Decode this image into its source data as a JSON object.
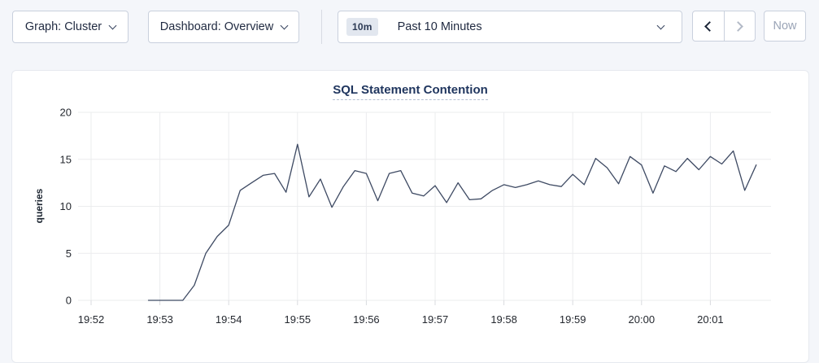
{
  "toolbar": {
    "graph_dropdown": {
      "label": "Graph: Cluster"
    },
    "dashboard_dropdown": {
      "label": "Dashboard: Overview"
    },
    "time_selector": {
      "badge": "10m",
      "label": "Past 10 Minutes"
    },
    "now_label": "Now",
    "icons": [
      "chevron-down-icon",
      "chevron-left-icon",
      "chevron-right-icon"
    ],
    "prev_enabled": true,
    "next_enabled": false,
    "now_enabled": false
  },
  "colors": {
    "page_background": "#f4f6fa",
    "card_background": "#ffffff",
    "line": "#3e4a63",
    "title": "#1f355e",
    "grid": "#ebecee",
    "disabled_text": "#9aa4b6"
  },
  "chart_data": {
    "type": "line",
    "title": "SQL Statement Contention",
    "ylabel": "queries",
    "xlabel": "",
    "ylim": [
      0,
      20
    ],
    "y_ticks": [
      0,
      5,
      10,
      15,
      20
    ],
    "x_ticks": [
      "19:52",
      "19:53",
      "19:54",
      "19:55",
      "19:56",
      "19:57",
      "19:58",
      "19:59",
      "20:00",
      "20:01"
    ],
    "grid": true,
    "legend_position": "none",
    "series": [
      {
        "name": "SQL Statement Contention",
        "points": [
          [
            "19:52:50",
            0
          ],
          [
            "19:53:00",
            0
          ],
          [
            "19:53:10",
            0
          ],
          [
            "19:53:20",
            0
          ],
          [
            "19:53:30",
            1.6
          ],
          [
            "19:53:40",
            5.0
          ],
          [
            "19:53:50",
            6.8
          ],
          [
            "19:54:00",
            8.0
          ],
          [
            "19:54:10",
            11.7
          ],
          [
            "19:54:20",
            12.5
          ],
          [
            "19:54:30",
            13.3
          ],
          [
            "19:54:40",
            13.5
          ],
          [
            "19:54:50",
            11.5
          ],
          [
            "19:55:00",
            16.6
          ],
          [
            "19:55:10",
            11.0
          ],
          [
            "19:55:20",
            12.9
          ],
          [
            "19:55:30",
            9.9
          ],
          [
            "19:55:40",
            12.1
          ],
          [
            "19:55:50",
            13.8
          ],
          [
            "19:56:00",
            13.5
          ],
          [
            "19:56:10",
            10.6
          ],
          [
            "19:56:20",
            13.5
          ],
          [
            "19:56:30",
            13.8
          ],
          [
            "19:56:40",
            11.4
          ],
          [
            "19:56:50",
            11.1
          ],
          [
            "19:57:00",
            12.2
          ],
          [
            "19:57:10",
            10.4
          ],
          [
            "19:57:20",
            12.5
          ],
          [
            "19:57:30",
            10.7
          ],
          [
            "19:57:40",
            10.8
          ],
          [
            "19:57:50",
            11.7
          ],
          [
            "19:58:00",
            12.3
          ],
          [
            "19:58:10",
            12.0
          ],
          [
            "19:58:20",
            12.3
          ],
          [
            "19:58:30",
            12.7
          ],
          [
            "19:58:40",
            12.3
          ],
          [
            "19:58:50",
            12.1
          ],
          [
            "19:59:00",
            13.4
          ],
          [
            "19:59:10",
            12.3
          ],
          [
            "19:59:20",
            15.1
          ],
          [
            "19:59:30",
            14.1
          ],
          [
            "19:59:40",
            12.4
          ],
          [
            "19:59:50",
            15.3
          ],
          [
            "20:00:00",
            14.4
          ],
          [
            "20:00:10",
            11.4
          ],
          [
            "20:00:20",
            14.3
          ],
          [
            "20:00:30",
            13.7
          ],
          [
            "20:00:40",
            15.1
          ],
          [
            "20:00:50",
            13.9
          ],
          [
            "20:01:00",
            15.3
          ],
          [
            "20:01:10",
            14.5
          ],
          [
            "20:01:20",
            15.9
          ],
          [
            "20:01:30",
            11.7
          ],
          [
            "20:01:40",
            14.4
          ]
        ]
      }
    ]
  }
}
